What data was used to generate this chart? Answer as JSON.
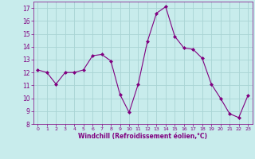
{
  "x": [
    0,
    1,
    2,
    3,
    4,
    5,
    6,
    7,
    8,
    9,
    10,
    11,
    12,
    13,
    14,
    15,
    16,
    17,
    18,
    19,
    20,
    21,
    22,
    23
  ],
  "y": [
    12.2,
    12.0,
    11.1,
    12.0,
    12.0,
    12.2,
    13.3,
    13.4,
    12.9,
    10.3,
    8.9,
    11.1,
    14.4,
    16.6,
    17.1,
    14.8,
    13.9,
    13.8,
    13.1,
    11.1,
    10.0,
    8.8,
    8.5,
    10.2
  ],
  "line_color": "#800080",
  "marker": "D",
  "marker_size": 2,
  "bg_color": "#c8ecec",
  "grid_color": "#a8d4d4",
  "xlabel": "Windchill (Refroidissement éolien,°C)",
  "xlabel_color": "#800080",
  "tick_color": "#800080",
  "ylim": [
    8,
    17.5
  ],
  "xlim": [
    -0.5,
    23.5
  ],
  "yticks": [
    8,
    9,
    10,
    11,
    12,
    13,
    14,
    15,
    16,
    17
  ],
  "xticks": [
    0,
    1,
    2,
    3,
    4,
    5,
    6,
    7,
    8,
    9,
    10,
    11,
    12,
    13,
    14,
    15,
    16,
    17,
    18,
    19,
    20,
    21,
    22,
    23
  ]
}
